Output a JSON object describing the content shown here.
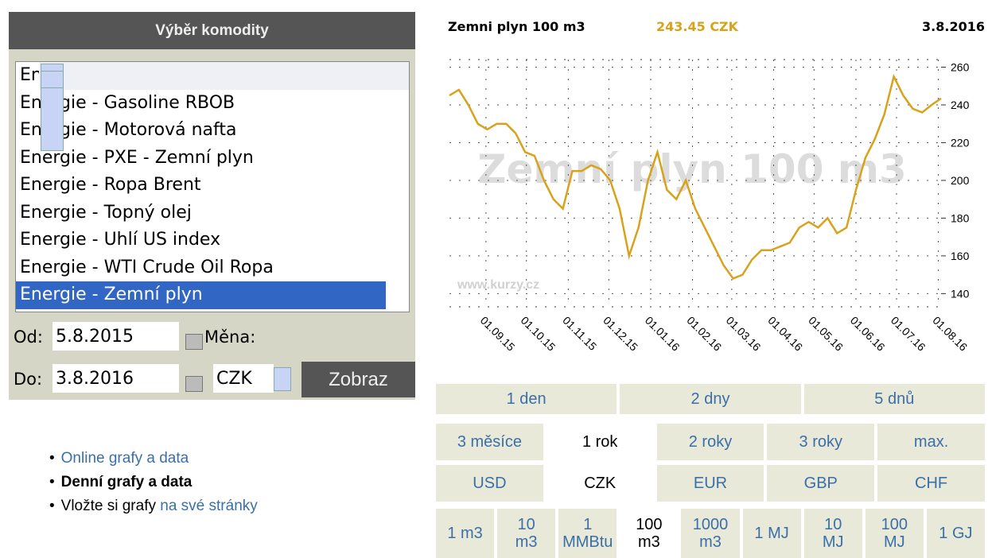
{
  "commodity_panel": {
    "title": "Výběr komodity",
    "items": [
      "Energie - Elektřina",
      "Energie - Gasoline RBOB",
      "Energie - Motorová nafta",
      "Energie - PXE - Zemní plyn",
      "Energie - Ropa Brent",
      "Energie - Topný olej",
      "Energie - Uhlí US index",
      "Energie - WTI Crude Oil Ropa",
      "Energie - Zemní plyn"
    ],
    "selected_index": 8
  },
  "form": {
    "from_label": "Od:",
    "from_value": "5.8.2015",
    "currency_label": "Měna:",
    "to_label": "Do:",
    "to_value": "3.8.2016",
    "currency_value": "CZK",
    "submit": "Zobraz"
  },
  "links": [
    {
      "text": "Online grafy a data"
    },
    {
      "text": "Denní grafy a data",
      "bold": true
    },
    {
      "prefix": "Vložte si grafy",
      "text": "na své stránky"
    }
  ],
  "chart_header": {
    "name": "Zemni plyn 100 m3",
    "price": "243.45 CZK",
    "date": "3.8.2016"
  },
  "chart_data": {
    "type": "line",
    "watermark": "Zemní plyn 100 m3",
    "source": "www.kurzy.cz",
    "color": "#d9a21b",
    "grid": true,
    "values": [
      245,
      248,
      240,
      230,
      227,
      230,
      230,
      225,
      215,
      213,
      200,
      190,
      185,
      205,
      205,
      208,
      206,
      200,
      185,
      160,
      175,
      200,
      215,
      195,
      190,
      200,
      185,
      175,
      165,
      155,
      148,
      150,
      158,
      163,
      163,
      165,
      167,
      175,
      178,
      175,
      180,
      172,
      175,
      195,
      212,
      222,
      235,
      255,
      245,
      238,
      236,
      240,
      243.45
    ],
    "xlim": [
      0,
      52
    ],
    "ylim": [
      133,
      264
    ],
    "xticks": [
      {
        "value": 3.86,
        "label": "01.09.15"
      },
      {
        "value": 8.14,
        "label": "01.10.15"
      },
      {
        "value": 12.57,
        "label": "01.11.15"
      },
      {
        "value": 16.86,
        "label": "01.12.15"
      },
      {
        "value": 21.29,
        "label": "01.01.16"
      },
      {
        "value": 25.71,
        "label": "01.02.16"
      },
      {
        "value": 29.86,
        "label": "01.03.16"
      },
      {
        "value": 34.29,
        "label": "01.04.16"
      },
      {
        "value": 38.57,
        "label": "01.05.16"
      },
      {
        "value": 43,
        "label": "01.06.16"
      },
      {
        "value": 47.29,
        "label": "01.07.16"
      },
      {
        "value": 51.71,
        "label": "01.08.16"
      }
    ],
    "yticks": [
      140,
      160,
      180,
      200,
      220,
      240,
      260
    ]
  },
  "period_rows": [
    [
      {
        "label": [
          "1 den"
        ]
      },
      {
        "label": [
          "2 dny"
        ]
      },
      {
        "label": [
          "5 dnů"
        ]
      }
    ],
    [
      {
        "label": [
          "3 měsíce"
        ]
      },
      {
        "label": [
          "1 rok"
        ],
        "selected": true
      },
      {
        "label": [
          "2 roky"
        ]
      },
      {
        "label": [
          "3 roky"
        ]
      },
      {
        "label": [
          "max."
        ]
      }
    ],
    [
      {
        "label": [
          "USD"
        ]
      },
      {
        "label": [
          "CZK"
        ],
        "selected": true
      },
      {
        "label": [
          "EUR"
        ]
      },
      {
        "label": [
          "GBP"
        ]
      },
      {
        "label": [
          "CHF"
        ]
      }
    ],
    [
      {
        "label": [
          "1 m3"
        ]
      },
      {
        "label": [
          "10",
          "m3"
        ]
      },
      {
        "label": [
          "1",
          "MMBtu"
        ]
      },
      {
        "label": [
          "100",
          "m3"
        ],
        "selected": true
      },
      {
        "label": [
          "1000",
          "m3"
        ]
      },
      {
        "label": [
          "1 MJ"
        ]
      },
      {
        "label": [
          "10",
          "MJ"
        ]
      },
      {
        "label": [
          "100",
          "MJ"
        ]
      },
      {
        "label": [
          "1 GJ"
        ]
      }
    ]
  ]
}
